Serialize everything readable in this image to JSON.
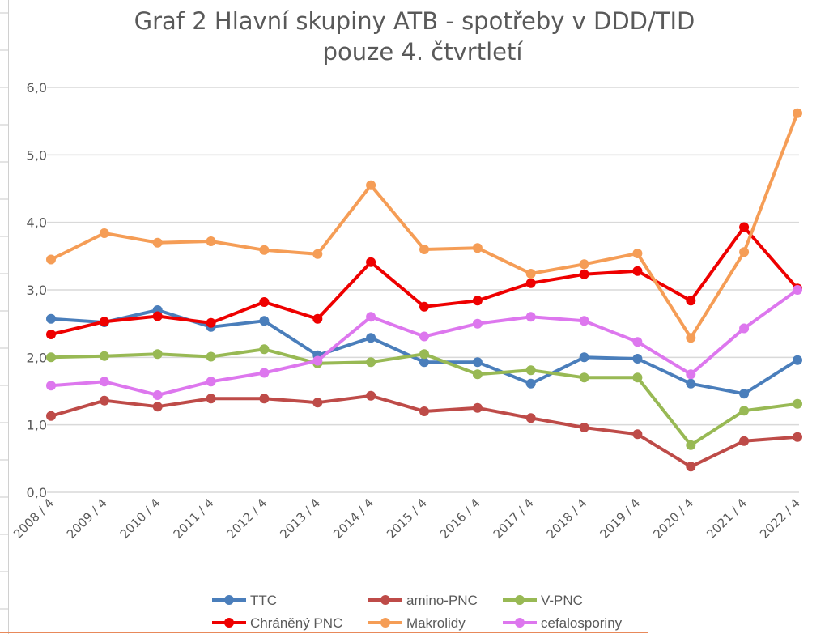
{
  "chart_data": {
    "type": "line",
    "title": [
      "Graf 2 Hlavní skupiny ATB - spotřeby v DDD/TID",
      "pouze 4. čtvrtletí"
    ],
    "xlabel": "",
    "ylabel": "",
    "ylim": [
      0,
      6
    ],
    "yticks": [
      0,
      1,
      2,
      3,
      4,
      5,
      6
    ],
    "ytick_labels": [
      "0,0",
      "1,0",
      "2,0",
      "3,0",
      "4,0",
      "5,0",
      "6,0"
    ],
    "grid": true,
    "legend_position": "bottom",
    "categories": [
      "2008 / 4",
      "2009 / 4",
      "2010 / 4",
      "2011 / 4",
      "2012 / 4",
      "2013 / 4",
      "2014 / 4",
      "2015 / 4",
      "2016 / 4",
      "2017 / 4",
      "2018 / 4",
      "2019 / 4",
      "2020 / 4",
      "2021 / 4",
      "2022 / 4"
    ],
    "series": [
      {
        "name": "TTC",
        "color": "#4a7ebb",
        "values": [
          2.57,
          2.52,
          2.7,
          2.45,
          2.54,
          2.03,
          2.29,
          1.93,
          1.93,
          1.61,
          2.0,
          1.98,
          1.61,
          1.46,
          1.96
        ]
      },
      {
        "name": "amino-PNC",
        "color": "#be4b48",
        "values": [
          1.13,
          1.36,
          1.27,
          1.39,
          1.39,
          1.33,
          1.43,
          1.2,
          1.25,
          1.1,
          0.96,
          0.86,
          0.38,
          0.76,
          0.82
        ]
      },
      {
        "name": "V-PNC",
        "color": "#98b954",
        "values": [
          2.0,
          2.02,
          2.05,
          2.01,
          2.12,
          1.91,
          1.93,
          2.05,
          1.75,
          1.81,
          1.7,
          1.7,
          0.7,
          1.21,
          1.31
        ]
      },
      {
        "name": "Chráněný PNC",
        "color": "#ee0000",
        "values": [
          2.34,
          2.53,
          2.61,
          2.51,
          2.82,
          2.57,
          3.41,
          2.75,
          2.84,
          3.1,
          3.23,
          3.28,
          2.84,
          3.93,
          3.02
        ]
      },
      {
        "name": "Makrolidy",
        "color": "#f59d56",
        "values": [
          3.45,
          3.84,
          3.7,
          3.72,
          3.59,
          3.53,
          4.55,
          3.6,
          3.62,
          3.24,
          3.38,
          3.54,
          2.29,
          3.56,
          5.62
        ]
      },
      {
        "name": "cefalosporiny",
        "color": "#dd77ee",
        "values": [
          1.58,
          1.64,
          1.44,
          1.64,
          1.77,
          1.95,
          2.6,
          2.31,
          2.5,
          2.6,
          2.54,
          2.23,
          1.75,
          2.43,
          3.0
        ]
      }
    ]
  }
}
